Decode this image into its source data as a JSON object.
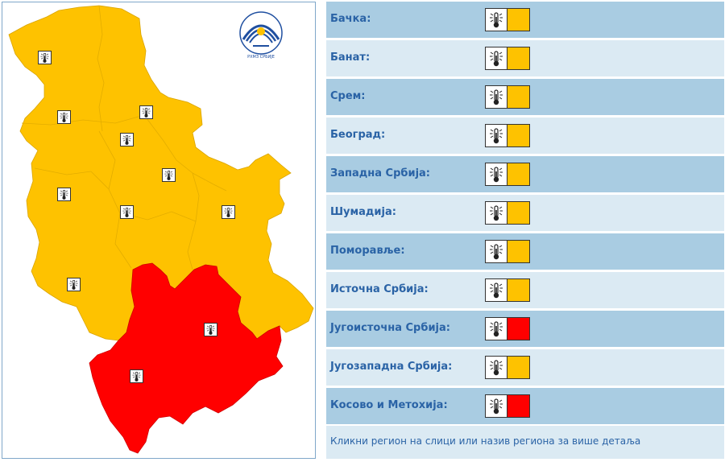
{
  "map": {
    "logo_text": "РХМЗ СРБИЈЕ",
    "logo_icon": "rhmz-logo-icon",
    "icon": "thermometer-icon",
    "colors": {
      "orange": "#fec200",
      "red": "#ff0000"
    }
  },
  "regions": [
    {
      "id": "backa",
      "name": "Бачка:",
      "level": "orange",
      "color": "#fec200"
    },
    {
      "id": "banat",
      "name": "Банат:",
      "level": "orange",
      "color": "#fec200"
    },
    {
      "id": "srem",
      "name": "Срем:",
      "level": "orange",
      "color": "#fec200"
    },
    {
      "id": "beograd",
      "name": "Београд:",
      "level": "orange",
      "color": "#fec200"
    },
    {
      "id": "zapadna-srbija",
      "name": "Западна Србија:",
      "level": "orange",
      "color": "#fec200"
    },
    {
      "id": "sumadija",
      "name": "Шумадија:",
      "level": "orange",
      "color": "#fec200"
    },
    {
      "id": "pomoravlje",
      "name": "Поморавље:",
      "level": "orange",
      "color": "#fec200"
    },
    {
      "id": "istocna-srbija",
      "name": "Источна Србија:",
      "level": "orange",
      "color": "#fec200"
    },
    {
      "id": "jugoistocna-srbija",
      "name": "Југоисточна Србија:",
      "level": "red",
      "color": "#ff0000"
    },
    {
      "id": "jugozapadna-srbija",
      "name": "Југозападна Србија:",
      "level": "orange",
      "color": "#fec200"
    },
    {
      "id": "kosovo-i-metohija",
      "name": "Косово и Метохија:",
      "level": "red",
      "color": "#ff0000"
    }
  ],
  "footer": {
    "text": "Кликни регион на слици или назив региона за више детаља"
  }
}
